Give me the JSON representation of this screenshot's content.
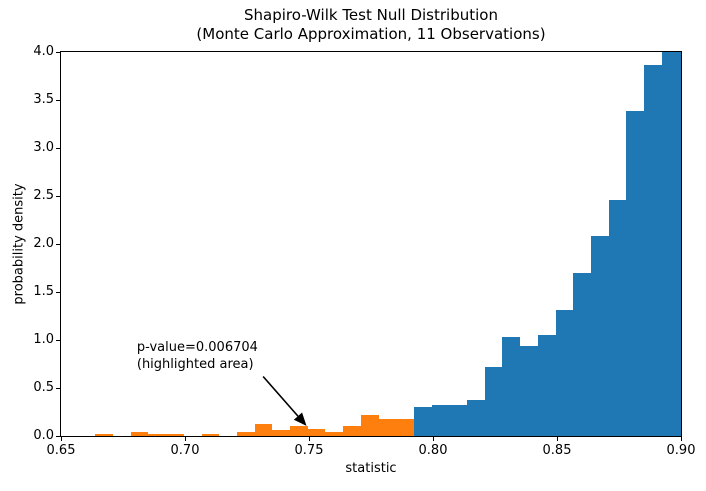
{
  "title": {
    "line1": "Shapiro-Wilk Test Null Distribution",
    "line2": "(Monte Carlo Approximation, 11 Observations)"
  },
  "axes": {
    "xlabel": "statistic",
    "ylabel": "probability density"
  },
  "annotation": {
    "line1": "p-value=0.006704",
    "line2": "(highlighted area)"
  },
  "colors": {
    "null_distribution": "#1f77b4",
    "highlighted_area": "#ff7f0e",
    "arrow": "#000000",
    "text": "#000000",
    "background": "#ffffff"
  },
  "chart_data": {
    "type": "bar",
    "title": "Shapiro-Wilk Test Null Distribution\n(Monte Carlo Approximation, 11 Observations)",
    "xlabel": "statistic",
    "ylabel": "probability density",
    "xlim": [
      0.65,
      0.9
    ],
    "ylim": [
      0,
      4.0
    ],
    "x_ticks": [
      0.65,
      0.7,
      0.75,
      0.8,
      0.85,
      0.9
    ],
    "x_tick_labels": [
      "0.65",
      "0.70",
      "0.75",
      "0.80",
      "0.85",
      "0.90"
    ],
    "y_ticks": [
      0.0,
      0.5,
      1.0,
      1.5,
      2.0,
      2.5,
      3.0,
      3.5,
      4.0
    ],
    "y_tick_labels": [
      "0.0",
      "0.5",
      "1.0",
      "1.5",
      "2.0",
      "2.5",
      "3.0",
      "3.5",
      "4.0"
    ],
    "grid": false,
    "legend": null,
    "p_value": 0.006704,
    "observations": 11,
    "observed_statistic": 0.792,
    "bin_width": 0.00714,
    "series": [
      {
        "name": "highlighted-area",
        "color": "#ff7f0e",
        "bars": [
          [
            0.6638,
            0.671,
            0.02
          ],
          [
            0.6781,
            0.6852,
            0.04
          ],
          [
            0.6852,
            0.6924,
            0.02
          ],
          [
            0.6924,
            0.6995,
            0.02
          ],
          [
            0.7067,
            0.7138,
            0.02
          ],
          [
            0.7209,
            0.7281,
            0.04
          ],
          [
            0.7281,
            0.7352,
            0.12
          ],
          [
            0.7352,
            0.7424,
            0.06
          ],
          [
            0.7424,
            0.7495,
            0.1
          ],
          [
            0.7495,
            0.7566,
            0.07
          ],
          [
            0.7566,
            0.7638,
            0.04
          ],
          [
            0.7638,
            0.7709,
            0.1
          ],
          [
            0.7709,
            0.7781,
            0.22
          ],
          [
            0.7781,
            0.7852,
            0.18
          ],
          [
            0.7852,
            0.7923,
            0.18
          ]
        ]
      },
      {
        "name": "null-distribution",
        "color": "#1f77b4",
        "bars": [
          [
            0.7923,
            0.7995,
            0.3
          ],
          [
            0.7995,
            0.8066,
            0.32
          ],
          [
            0.8066,
            0.8138,
            0.32
          ],
          [
            0.8138,
            0.8209,
            0.38
          ],
          [
            0.8209,
            0.828,
            0.72
          ],
          [
            0.828,
            0.8352,
            1.03
          ],
          [
            0.8352,
            0.8423,
            0.94
          ],
          [
            0.8423,
            0.8495,
            1.05
          ],
          [
            0.8495,
            0.8566,
            1.31
          ],
          [
            0.8566,
            0.8637,
            1.7
          ],
          [
            0.8637,
            0.8709,
            2.08
          ],
          [
            0.8709,
            0.878,
            2.46
          ],
          [
            0.878,
            0.8852,
            3.39
          ],
          [
            0.8852,
            0.8923,
            3.86
          ],
          [
            0.8923,
            0.9,
            4.0
          ]
        ]
      }
    ],
    "annotation": {
      "text": "p-value=0.006704\n(highlighted area)",
      "text_xy": [
        0.6806,
        1.0
      ],
      "arrow_from": [
        0.7315,
        0.62
      ],
      "arrow_to": [
        0.749,
        0.105
      ]
    }
  }
}
